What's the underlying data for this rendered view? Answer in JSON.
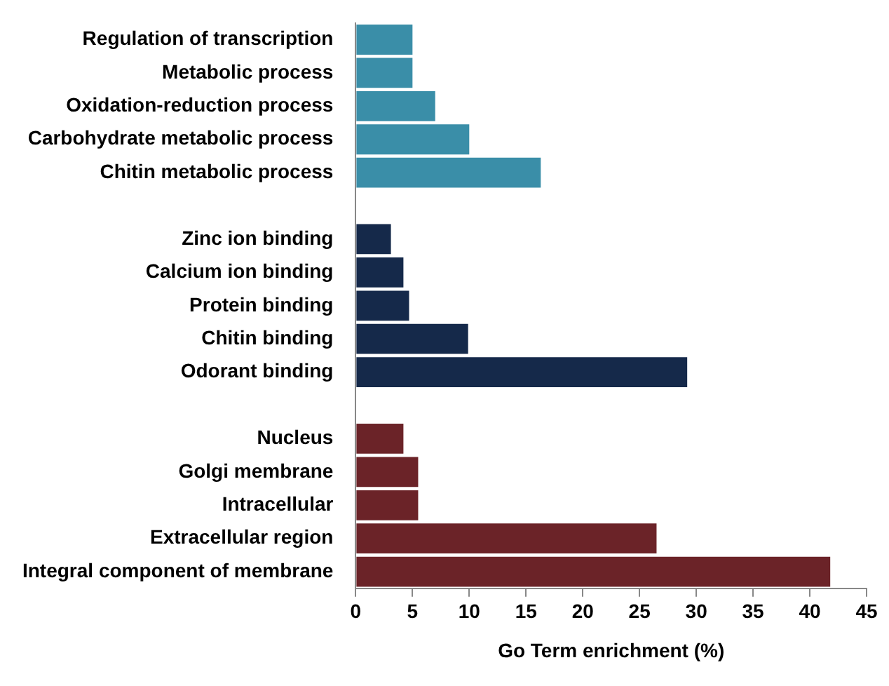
{
  "chart_data": {
    "type": "bar",
    "orientation": "horizontal",
    "xlabel": "Go Term enrichment (%)",
    "categories": [
      "Regulation of transcription",
      "Metabolic process",
      "Oxidation-reduction process",
      "Carbohydrate metabolic process",
      "Chitin metabolic process",
      null,
      "Zinc ion binding",
      "Calcium ion binding",
      "Protein binding",
      "Chitin binding",
      "Odorant binding",
      null,
      "Nucleus",
      "Golgi membrane",
      "Intracellular",
      "Extracellular region",
      "Integral component of membrane"
    ],
    "values": [
      5,
      5,
      7,
      10,
      16.3,
      null,
      3.1,
      4.2,
      4.7,
      9.9,
      29.2,
      null,
      4.2,
      5.5,
      5.5,
      26.5,
      41.8
    ],
    "colors": [
      "#3a8ea8",
      "#3a8ea8",
      "#3a8ea8",
      "#3a8ea8",
      "#3a8ea8",
      null,
      "#15294a",
      "#15294a",
      "#15294a",
      "#15294a",
      "#15294a",
      null,
      "#6b2328",
      "#6b2328",
      "#6b2328",
      "#6b2328",
      "#6b2328"
    ],
    "xlim": [
      0,
      45
    ],
    "xticks": [
      0,
      5,
      10,
      15,
      20,
      25,
      30,
      35,
      40,
      45
    ],
    "grid": false,
    "legend": false
  }
}
